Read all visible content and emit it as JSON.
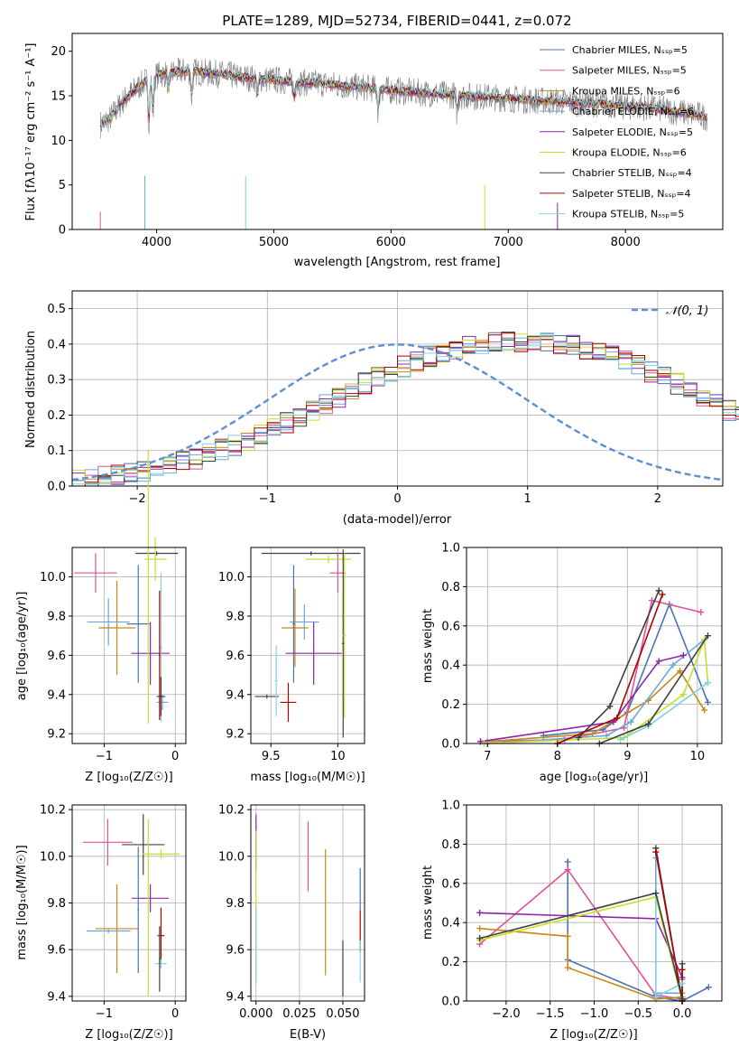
{
  "colors": [
    "#4c72b0",
    "#e0519a",
    "#c58a14",
    "#6aa7e0",
    "#8e24aa",
    "#c6df2c",
    "#404040",
    "#b00000",
    "#7fd4e0"
  ],
  "chart_data": [
    {
      "id": "spectrum",
      "type": "line",
      "title": "PLATE=1289, MJD=52734, FIBERID=0441, z=0.072",
      "xlabel": "wavelength [Angstrom, rest frame]",
      "ylabel": "Flux [fλ10⁻¹⁷ erg cm⁻² s⁻¹ A⁻¹]",
      "xlim": [
        3280,
        8830
      ],
      "ylim": [
        0,
        22
      ],
      "xticks": [
        4000,
        5000,
        6000,
        7000,
        8000
      ],
      "yticks": [
        0,
        5,
        10,
        15,
        20
      ],
      "grid": false,
      "legend_position": "top-right",
      "continuum": {
        "x": [
          3520,
          3600,
          3700,
          3800,
          3900,
          4000,
          4100,
          4200,
          4300,
          4400,
          4500,
          4600,
          4700,
          4800,
          4900,
          5000,
          5200,
          5400,
          5600,
          5800,
          6000,
          6200,
          6400,
          6600,
          6800,
          7000,
          7200,
          7400,
          7600,
          7800,
          8000,
          8200,
          8400,
          8600,
          8700
        ],
        "y": [
          11.8,
          12.4,
          14.2,
          15.5,
          16.6,
          17.3,
          17.5,
          17.7,
          17.8,
          17.6,
          17.5,
          17.4,
          17.1,
          17.0,
          16.9,
          16.8,
          16.5,
          16.4,
          16.1,
          15.9,
          15.6,
          15.4,
          15.2,
          15.0,
          14.9,
          14.7,
          14.5,
          14.4,
          14.2,
          14.1,
          13.8,
          13.7,
          13.3,
          12.9,
          12.6
        ]
      },
      "series": [
        {
          "name": "Chabrier MILES, N_SSP=5"
        },
        {
          "name": "Salpeter MILES, N_SSP=5"
        },
        {
          "name": "Kroupa MILES, N_SSP=6"
        },
        {
          "name": "Chabrier ELODIE, N_SSP=6"
        },
        {
          "name": "Salpeter ELODIE, N_SSP=5"
        },
        {
          "name": "Kroupa ELODIE, N_SSP=6"
        },
        {
          "name": "Chabrier STELIB, N_SSP=4"
        },
        {
          "name": "Salpeter STELIB, N_SSP=4"
        },
        {
          "name": "Kroupa STELIB, N_SSP=5"
        }
      ]
    },
    {
      "id": "residuals",
      "type": "line",
      "xlabel": "(data-model)/error",
      "ylabel": "Normed distribution",
      "xlim": [
        -2.5,
        2.5
      ],
      "ylim": [
        0,
        0.55
      ],
      "xticks": [
        -2,
        -1,
        0,
        1,
        2
      ],
      "yticks": [
        0.0,
        0.1,
        0.2,
        0.3,
        0.4,
        0.5
      ],
      "grid": true,
      "legend": "𝒩(0, 1)",
      "legend_position": "top-right",
      "bin_width": 0.1,
      "bin_start": -2.5,
      "base_hist": [
        0.018,
        0.022,
        0.026,
        0.03,
        0.036,
        0.042,
        0.05,
        0.06,
        0.068,
        0.078,
        0.09,
        0.103,
        0.115,
        0.13,
        0.145,
        0.162,
        0.178,
        0.195,
        0.215,
        0.232,
        0.252,
        0.27,
        0.29,
        0.305,
        0.322,
        0.338,
        0.352,
        0.366,
        0.376,
        0.386,
        0.392,
        0.398,
        0.403,
        0.405,
        0.408,
        0.41,
        0.406,
        0.402,
        0.396,
        0.388,
        0.378,
        0.366,
        0.352,
        0.338,
        0.322,
        0.305,
        0.288,
        0.27,
        0.252,
        0.232,
        0.212,
        0.195,
        0.175,
        0.158,
        0.14,
        0.125,
        0.11,
        0.095,
        0.082,
        0.071,
        0.06,
        0.052,
        0.044,
        0.038,
        0.032,
        0.027,
        0.023,
        0.02,
        0.017,
        0.015
      ]
    },
    {
      "id": "age-vs-Z",
      "type": "scatter",
      "xlabel": "Z [log₁₀(Z/Z☉)]",
      "ylabel": "age  [log₁₀(age/yr)]",
      "xlim": [
        -1.45,
        0.15
      ],
      "ylim": [
        9.15,
        10.15
      ],
      "xticks": [
        -1,
        0
      ],
      "yticks": [
        9.2,
        9.4,
        9.6,
        9.8,
        10.0
      ],
      "grid": true,
      "points": [
        {
          "x": -0.26,
          "y": 10.12,
          "xerr": 0.3,
          "yerr": 0.01,
          "c": 6
        },
        {
          "x": -1.12,
          "y": 10.02,
          "xerr": 0.3,
          "yerr": 0.1,
          "c": 1
        },
        {
          "x": -0.28,
          "y": 10.09,
          "xerr": 0.16,
          "yerr": 0.11,
          "c": 5
        },
        {
          "x": -0.94,
          "y": 9.77,
          "xerr": 0.3,
          "yerr": 0.12,
          "c": 3
        },
        {
          "x": -0.82,
          "y": 9.74,
          "xerr": 0.26,
          "yerr": 0.24,
          "c": 2
        },
        {
          "x": -0.52,
          "y": 9.76,
          "xerr": 0.16,
          "yerr": 0.3,
          "c": 0
        },
        {
          "x": -0.35,
          "y": 9.61,
          "xerr": 0.27,
          "yerr": 0.16,
          "c": 4
        },
        {
          "x": -0.2,
          "y": 9.64,
          "xerr": 0.02,
          "yerr": 0.38,
          "c": 8
        },
        {
          "x": -0.18,
          "y": 9.36,
          "xerr": 0.08,
          "yerr": 0.04,
          "c": 3
        },
        {
          "x": -0.2,
          "y": 9.39,
          "xerr": 0.06,
          "yerr": 0.1,
          "c": 6
        },
        {
          "x": -0.22,
          "y": 9.6,
          "xerr": 0.01,
          "yerr": 0.33,
          "c": 7
        },
        {
          "x": -0.38,
          "y": 9.95,
          "xerr": 0.01,
          "yerr": 0.7,
          "c": 5
        }
      ]
    },
    {
      "id": "age-vs-mass",
      "type": "scatter",
      "xlabel": "mass [log₁₀(M/M☉)]",
      "xlim": [
        9.35,
        10.2
      ],
      "ylim": [
        9.15,
        10.15
      ],
      "xticks": [
        9.5,
        10.0
      ],
      "yticks": [
        9.2,
        9.4,
        9.6,
        9.8,
        10.0
      ],
      "grid": true,
      "points": [
        {
          "x": 9.8,
          "y": 10.12,
          "xerr": 0.37,
          "yerr": 0.01,
          "c": 6
        },
        {
          "x": 10.0,
          "y": 10.02,
          "xerr": 0.06,
          "yerr": 0.1,
          "c": 1
        },
        {
          "x": 9.93,
          "y": 10.09,
          "xerr": 0.17,
          "yerr": 0.02,
          "c": 5
        },
        {
          "x": 9.75,
          "y": 9.77,
          "xerr": 0.11,
          "yerr": 0.09,
          "c": 3
        },
        {
          "x": 9.68,
          "y": 9.74,
          "xerr": 0.1,
          "yerr": 0.2,
          "c": 2
        },
        {
          "x": 9.67,
          "y": 9.76,
          "xerr": 0.01,
          "yerr": 0.3,
          "c": 0
        },
        {
          "x": 9.82,
          "y": 9.61,
          "xerr": 0.21,
          "yerr": 0.16,
          "c": 4
        },
        {
          "x": 9.47,
          "y": 9.39,
          "xerr": 0.09,
          "yerr": 0.01,
          "c": 6
        },
        {
          "x": 9.63,
          "y": 9.36,
          "xerr": 0.06,
          "yerr": 0.1,
          "c": 7
        },
        {
          "x": 9.54,
          "y": 9.47,
          "xerr": 0.01,
          "yerr": 0.18,
          "c": 8
        },
        {
          "x": 10.04,
          "y": 9.66,
          "xerr": 0.01,
          "yerr": 0.48,
          "c": 6
        },
        {
          "x": 10.05,
          "y": 9.7,
          "xerr": 0.01,
          "yerr": 0.42,
          "c": 5
        }
      ]
    },
    {
      "id": "weight-vs-age",
      "type": "line",
      "xlabel": "age  [log₁₀(age/yr)]",
      "ylabel": "mass weight",
      "xlim": [
        6.7,
        10.35
      ],
      "ylim": [
        0,
        1.0
      ],
      "xticks": [
        7,
        8,
        9,
        10
      ],
      "yticks": [
        0.0,
        0.2,
        0.4,
        0.6,
        0.8,
        1.0
      ],
      "grid": true,
      "series": [
        {
          "c": 0,
          "x": [
            7.8,
            8.65,
            9.0,
            9.6,
            10.15
          ],
          "y": [
            0.04,
            0.07,
            0.16,
            0.71,
            0.21
          ]
        },
        {
          "c": 1,
          "x": [
            6.9,
            8.1,
            8.95,
            9.35,
            10.05
          ],
          "y": [
            0.01,
            0.02,
            0.08,
            0.73,
            0.67
          ]
        },
        {
          "c": 2,
          "x": [
            7.0,
            8.5,
            9.3,
            9.75,
            10.1
          ],
          "y": [
            0.01,
            0.05,
            0.22,
            0.37,
            0.17
          ]
        },
        {
          "c": 3,
          "x": [
            7.0,
            8.7,
            9.05,
            9.65,
            10.1
          ],
          "y": [
            0.0,
            0.04,
            0.11,
            0.4,
            0.53
          ]
        },
        {
          "c": 4,
          "x": [
            6.9,
            8.8,
            9.45,
            9.8
          ],
          "y": [
            0.01,
            0.11,
            0.42,
            0.45
          ]
        },
        {
          "c": 5,
          "x": [
            6.95,
            8.95,
            9.8,
            10.1,
            10.15
          ],
          "y": [
            0.0,
            0.03,
            0.25,
            0.53,
            0.31
          ]
        },
        {
          "c": 6,
          "x": [
            8.3,
            8.75,
            9.45
          ],
          "y": [
            0.03,
            0.19,
            0.78
          ]
        },
        {
          "c": 7,
          "x": [
            8.0,
            8.85,
            9.5
          ],
          "y": [
            0.0,
            0.13,
            0.76
          ]
        },
        {
          "c": 8,
          "x": [
            8.9,
            9.3,
            10.15
          ],
          "y": [
            0.02,
            0.09,
            0.31
          ]
        },
        {
          "c": 6,
          "x": [
            8.6,
            9.3,
            10.15
          ],
          "y": [
            0.0,
            0.1,
            0.55
          ]
        }
      ]
    },
    {
      "id": "mass-vs-Z",
      "type": "scatter",
      "xlabel": "Z [log₁₀(Z/Z☉)]",
      "ylabel": "mass [log₁₀(M/M☉)]",
      "xlim": [
        -1.45,
        0.15
      ],
      "ylim": [
        9.38,
        10.22
      ],
      "xticks": [
        -1,
        0
      ],
      "yticks": [
        9.4,
        9.6,
        9.8,
        10.0,
        10.2
      ],
      "grid": true,
      "points": [
        {
          "x": -0.95,
          "y": 10.06,
          "xerr": 0.35,
          "yerr": 0.1,
          "c": 1
        },
        {
          "x": -0.45,
          "y": 10.05,
          "xerr": 0.3,
          "yerr": 0.13,
          "c": 6
        },
        {
          "x": -0.2,
          "y": 10.01,
          "xerr": 0.26,
          "yerr": 0.02,
          "c": 5
        },
        {
          "x": -0.82,
          "y": 9.69,
          "xerr": 0.3,
          "yerr": 0.19,
          "c": 2
        },
        {
          "x": -0.94,
          "y": 9.68,
          "xerr": 0.31,
          "yerr": 0.01,
          "c": 3
        },
        {
          "x": -0.35,
          "y": 9.82,
          "xerr": 0.26,
          "yerr": 0.06,
          "c": 4
        },
        {
          "x": -0.52,
          "y": 9.77,
          "xerr": 0.01,
          "yerr": 0.27,
          "c": 0
        },
        {
          "x": -0.2,
          "y": 9.66,
          "xerr": 0.05,
          "yerr": 0.12,
          "c": 7
        },
        {
          "x": -0.2,
          "y": 9.54,
          "xerr": 0.08,
          "yerr": 0.02,
          "c": 8
        },
        {
          "x": -0.22,
          "y": 9.56,
          "xerr": 0.01,
          "yerr": 0.14,
          "c": 6
        },
        {
          "x": -0.38,
          "y": 9.78,
          "xerr": 0.01,
          "yerr": 0.38,
          "c": 5
        }
      ]
    },
    {
      "id": "mass-vs-ebv",
      "type": "scatter",
      "xlabel": "E(B-V)",
      "xlim": [
        -0.003,
        0.0625
      ],
      "ylim": [
        9.38,
        10.22
      ],
      "xticks": [
        0.0,
        0.025,
        0.05
      ],
      "ytick_labels": [
        "9.4",
        "9.6",
        "9.8",
        "10.0",
        "10.2"
      ],
      "yticks": [
        9.4,
        9.6,
        9.8,
        10.0,
        10.2
      ],
      "tick_labels_x": [
        "0.000",
        "0.025",
        "0.050"
      ],
      "grid": true,
      "points": [
        {
          "x": 0.0,
          "y": 10.06,
          "xerr": 0,
          "yerr": 0.12,
          "c": 4
        },
        {
          "x": 0.0,
          "y": 9.78,
          "xerr": 0,
          "yerr": 0.33,
          "c": 5
        },
        {
          "x": 0.0,
          "y": 9.62,
          "xerr": 0,
          "yerr": 0.16,
          "c": 8
        },
        {
          "x": 0.03,
          "y": 10.0,
          "xerr": 0,
          "yerr": 0.15,
          "c": 1
        },
        {
          "x": 0.04,
          "y": 9.76,
          "xerr": 0,
          "yerr": 0.27,
          "c": 2
        },
        {
          "x": 0.05,
          "y": 9.52,
          "xerr": 0,
          "yerr": 0.12,
          "c": 6
        },
        {
          "x": 0.06,
          "y": 9.86,
          "xerr": 0,
          "yerr": 0.09,
          "c": 0
        },
        {
          "x": 0.06,
          "y": 9.68,
          "xerr": 0,
          "yerr": 0.09,
          "c": 7
        },
        {
          "x": 0.06,
          "y": 9.55,
          "xerr": 0,
          "yerr": 0.09,
          "c": 8
        }
      ]
    },
    {
      "id": "weight-vs-Z",
      "type": "line",
      "xlabel": "Z [log₁₀(Z/Z☉)]",
      "ylabel": "mass weight",
      "xlim": [
        -2.45,
        0.45
      ],
      "ylim": [
        0,
        1.0
      ],
      "xticks": [
        -2.0,
        -1.5,
        -1.0,
        -0.5,
        0.0
      ],
      "yticks": [
        0.0,
        0.2,
        0.4,
        0.6,
        0.8,
        1.0
      ],
      "grid": true,
      "series": [
        {
          "c": 0,
          "x": [
            -1.3,
            -1.3,
            -0.3,
            0.0,
            0.3
          ],
          "y": [
            0.71,
            0.21,
            0.02,
            0.0,
            0.07
          ]
        },
        {
          "c": 1,
          "x": [
            -2.3,
            -1.3,
            -0.3,
            0.0
          ],
          "y": [
            0.29,
            0.67,
            0.03,
            0.01
          ]
        },
        {
          "c": 2,
          "x": [
            -2.3,
            -1.3,
            -1.3,
            -0.3,
            0.0
          ],
          "y": [
            0.37,
            0.33,
            0.17,
            0.01,
            0.02
          ]
        },
        {
          "c": 3,
          "x": [
            -0.3,
            -0.3,
            0.0,
            0.0
          ],
          "y": [
            0.73,
            0.04,
            0.04,
            0.11
          ]
        },
        {
          "c": 4,
          "x": [
            -2.3,
            -0.3,
            0.0
          ],
          "y": [
            0.45,
            0.42,
            0.12
          ]
        },
        {
          "c": 5,
          "x": [
            -2.3,
            -0.3,
            0.0
          ],
          "y": [
            0.31,
            0.53,
            0.0
          ]
        },
        {
          "c": 6,
          "x": [
            -0.3,
            0.0,
            0.0
          ],
          "y": [
            0.78,
            0.0,
            0.19
          ]
        },
        {
          "c": 7,
          "x": [
            -0.3,
            0.0,
            0.0
          ],
          "y": [
            0.76,
            0.0,
            0.16
          ]
        },
        {
          "c": 8,
          "x": [
            -0.3,
            -0.3,
            0.0
          ],
          "y": [
            0.55,
            0.02,
            0.09
          ]
        },
        {
          "c": 6,
          "x": [
            -2.3,
            -0.3,
            0.0
          ],
          "y": [
            0.32,
            0.55,
            0.01
          ]
        }
      ]
    }
  ]
}
